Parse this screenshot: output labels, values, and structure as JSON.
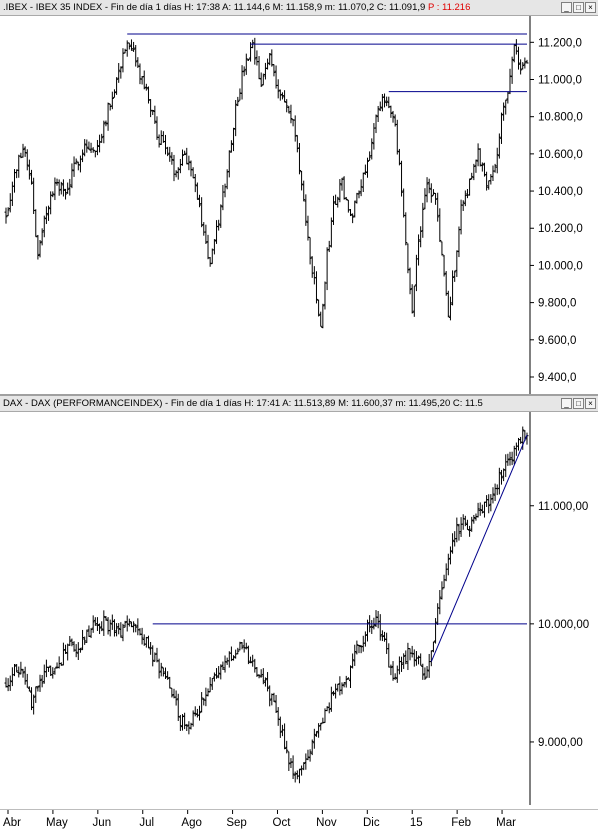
{
  "ibex": {
    "title": ".IBEX - IBEX 35 INDEX - Fin de día 1 días  H: 17:38  A: 11.144,6  M: 11.158,9  m: 11.070,2  C: 11.091,9 ",
    "p_label": "P : 11.216"
  },
  "dax": {
    "title": "DAX - DAX (PERFORMANCEINDEX) - Fin de día 1 días  H: 17:41  A: 11.513,89  M: 11.600,37  m: 11.495,20  C: 11.5"
  },
  "window_buttons": [
    "_",
    "□",
    "×"
  ],
  "x_axis_labels": [
    "Abr",
    "May",
    "Jun",
    "Jul",
    "Ago",
    "Sep",
    "Oct",
    "Nov",
    "Dic",
    "15",
    "Feb",
    "Mar"
  ],
  "colors": {
    "price": "#000000",
    "trendline": "#00008b",
    "background": "#ffffff",
    "title_bar": "#e6e6e6",
    "p_label": "#e00000"
  },
  "chart_data": [
    {
      "type": "bar",
      "style": "ohlc",
      "title": "IBEX 35 INDEX",
      "ylim": [
        9330,
        11320
      ],
      "yticks": [
        9400,
        9600,
        9800,
        10000,
        10200,
        10400,
        10600,
        10800,
        11000,
        11200
      ],
      "ytick_labels": [
        "9.400,0",
        "9.600,0",
        "9.800,0",
        "10.000,0",
        "10.200,0",
        "10.400,0",
        "10.600,0",
        "10.800,0",
        "11.000,0",
        "11.200,0"
      ],
      "xlim": [
        0,
        245
      ],
      "keypoints": [
        [
          0,
          10280
        ],
        [
          4,
          10480
        ],
        [
          8,
          10650
        ],
        [
          12,
          10450
        ],
        [
          15,
          10040
        ],
        [
          19,
          10300
        ],
        [
          24,
          10450
        ],
        [
          28,
          10380
        ],
        [
          33,
          10550
        ],
        [
          37,
          10650
        ],
        [
          42,
          10600
        ],
        [
          47,
          10800
        ],
        [
          52,
          11000
        ],
        [
          56,
          11180
        ],
        [
          60,
          11130
        ],
        [
          63,
          11020
        ],
        [
          67,
          10900
        ],
        [
          71,
          10700
        ],
        [
          75,
          10650
        ],
        [
          79,
          10500
        ],
        [
          83,
          10600
        ],
        [
          87,
          10550
        ],
        [
          91,
          10300
        ],
        [
          96,
          10000
        ],
        [
          100,
          10240
        ],
        [
          104,
          10520
        ],
        [
          108,
          10850
        ],
        [
          112,
          11060
        ],
        [
          116,
          11170
        ],
        [
          120,
          10960
        ],
        [
          124,
          11140
        ],
        [
          128,
          10950
        ],
        [
          132,
          10850
        ],
        [
          136,
          10720
        ],
        [
          140,
          10320
        ],
        [
          144,
          9980
        ],
        [
          148,
          9660
        ],
        [
          151,
          10050
        ],
        [
          154,
          10320
        ],
        [
          158,
          10440
        ],
        [
          162,
          10250
        ],
        [
          166,
          10420
        ],
        [
          170,
          10560
        ],
        [
          174,
          10780
        ],
        [
          178,
          10900
        ],
        [
          182,
          10830
        ],
        [
          185,
          10520
        ],
        [
          188,
          10100
        ],
        [
          191,
          9760
        ],
        [
          194,
          10150
        ],
        [
          198,
          10420
        ],
        [
          202,
          10350
        ],
        [
          205,
          10050
        ],
        [
          208,
          9720
        ],
        [
          211,
          10000
        ],
        [
          214,
          10300
        ],
        [
          218,
          10450
        ],
        [
          222,
          10600
        ],
        [
          226,
          10450
        ],
        [
          230,
          10550
        ],
        [
          233,
          10780
        ],
        [
          236,
          10960
        ],
        [
          239,
          11170
        ],
        [
          242,
          11050
        ],
        [
          245,
          11100
        ]
      ],
      "lines": [
        {
          "from": [
            57,
            11245
          ],
          "to": [
            245,
            11245
          ]
        },
        {
          "from": [
            115,
            11190
          ],
          "to": [
            245,
            11190
          ]
        },
        {
          "from": [
            180,
            10935
          ],
          "to": [
            245,
            10935
          ]
        }
      ]
    },
    {
      "type": "bar",
      "style": "ohlc",
      "title": "DAX (PERFORMANCEINDEX)",
      "ylim": [
        8500,
        11760
      ],
      "yticks": [
        9000,
        10000,
        11000
      ],
      "ytick_labels": [
        "9.000,00",
        "10.000,00",
        "11.000,00"
      ],
      "xlim": [
        0,
        245
      ],
      "keypoints": [
        [
          0,
          9500
        ],
        [
          4,
          9620
        ],
        [
          8,
          9540
        ],
        [
          12,
          9330
        ],
        [
          16,
          9500
        ],
        [
          20,
          9600
        ],
        [
          25,
          9680
        ],
        [
          30,
          9800
        ],
        [
          34,
          9780
        ],
        [
          38,
          9920
        ],
        [
          42,
          9990
        ],
        [
          46,
          10010
        ],
        [
          50,
          9980
        ],
        [
          54,
          9900
        ],
        [
          58,
          10020
        ],
        [
          62,
          9930
        ],
        [
          66,
          9830
        ],
        [
          70,
          9700
        ],
        [
          74,
          9550
        ],
        [
          78,
          9430
        ],
        [
          82,
          9180
        ],
        [
          86,
          9120
        ],
        [
          90,
          9260
        ],
        [
          94,
          9380
        ],
        [
          98,
          9520
        ],
        [
          102,
          9660
        ],
        [
          106,
          9750
        ],
        [
          110,
          9820
        ],
        [
          114,
          9720
        ],
        [
          118,
          9600
        ],
        [
          122,
          9500
        ],
        [
          126,
          9300
        ],
        [
          130,
          9050
        ],
        [
          134,
          8800
        ],
        [
          138,
          8720
        ],
        [
          142,
          8880
        ],
        [
          146,
          9080
        ],
        [
          150,
          9260
        ],
        [
          154,
          9400
        ],
        [
          158,
          9480
        ],
        [
          162,
          9620
        ],
        [
          166,
          9820
        ],
        [
          170,
          9950
        ],
        [
          174,
          10050
        ],
        [
          178,
          9830
        ],
        [
          182,
          9520
        ],
        [
          186,
          9670
        ],
        [
          190,
          9760
        ],
        [
          194,
          9730
        ],
        [
          197,
          9520
        ],
        [
          200,
          9800
        ],
        [
          203,
          10100
        ],
        [
          206,
          10420
        ],
        [
          209,
          10650
        ],
        [
          212,
          10800
        ],
        [
          215,
          10860
        ],
        [
          218,
          10780
        ],
        [
          221,
          10920
        ],
        [
          224,
          10980
        ],
        [
          227,
          11020
        ],
        [
          230,
          11120
        ],
        [
          233,
          11280
        ],
        [
          236,
          11360
        ],
        [
          239,
          11480
        ],
        [
          242,
          11570
        ],
        [
          245,
          11620
        ]
      ],
      "lines": [
        {
          "from": [
            69,
            10000
          ],
          "to": [
            245,
            10000
          ]
        },
        {
          "from": [
            200,
            9680
          ],
          "to": [
            245,
            11600
          ]
        }
      ]
    }
  ]
}
